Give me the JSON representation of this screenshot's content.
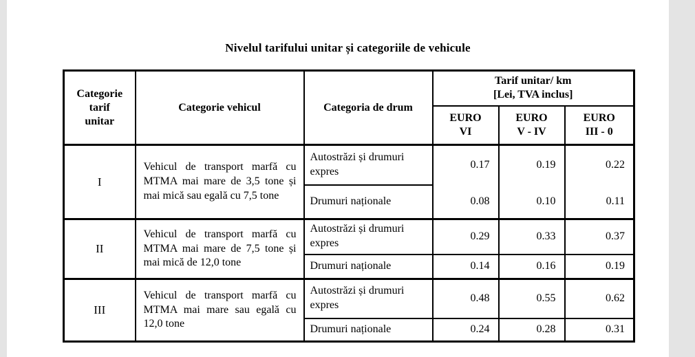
{
  "page": {
    "background": "#ffffff",
    "margin_strip_color": "#e4e4e4",
    "border_color": "#000000",
    "text_color": "#000000"
  },
  "title": "Nivelul tarifului unitar și categoriile de vehicule",
  "table": {
    "headers": {
      "category_tariff": "Categorie\ntarif\nunitar",
      "vehicle_category": "Categorie vehicul",
      "road_category": "Categoria de drum",
      "tariff_group": "Tarif unitar/ km\n[Lei, TVA inclus]",
      "euro_classes": [
        "EURO\nVI",
        "EURO\nV - IV",
        "EURO\nIII - 0"
      ]
    },
    "rows": [
      {
        "category": "I",
        "vehicle": "Vehicul de transport marfă cu MTMA mai mare de 3,5 tone și mai mică sau egală cu 7,5 tone",
        "roads": [
          {
            "road": "Autostrăzi și drumuri expres",
            "values": [
              "0.17",
              "0.19",
              "0.22"
            ]
          },
          {
            "road": "Drumuri naționale",
            "values": [
              "0.08",
              "0.10",
              "0.11"
            ]
          }
        ]
      },
      {
        "category": "II",
        "vehicle": "Vehicul de transport marfă cu MTMA mai mare de 7,5 tone și mai mică de 12,0 tone",
        "roads": [
          {
            "road": "Autostrăzi și drumuri expres",
            "values": [
              "0.29",
              "0.33",
              "0.37"
            ]
          },
          {
            "road": "Drumuri naționale",
            "values": [
              "0.14",
              "0.16",
              "0.19"
            ]
          }
        ]
      },
      {
        "category": "III",
        "vehicle": "Vehicul de transport marfă cu MTMA mai mare sau egală cu 12,0 tone",
        "roads": [
          {
            "road": "Autostrăzi și drumuri expres",
            "values": [
              "0.48",
              "0.55",
              "0.62"
            ]
          },
          {
            "road": "Drumuri naționale",
            "values": [
              "0.24",
              "0.28",
              "0.31"
            ]
          }
        ]
      }
    ]
  }
}
